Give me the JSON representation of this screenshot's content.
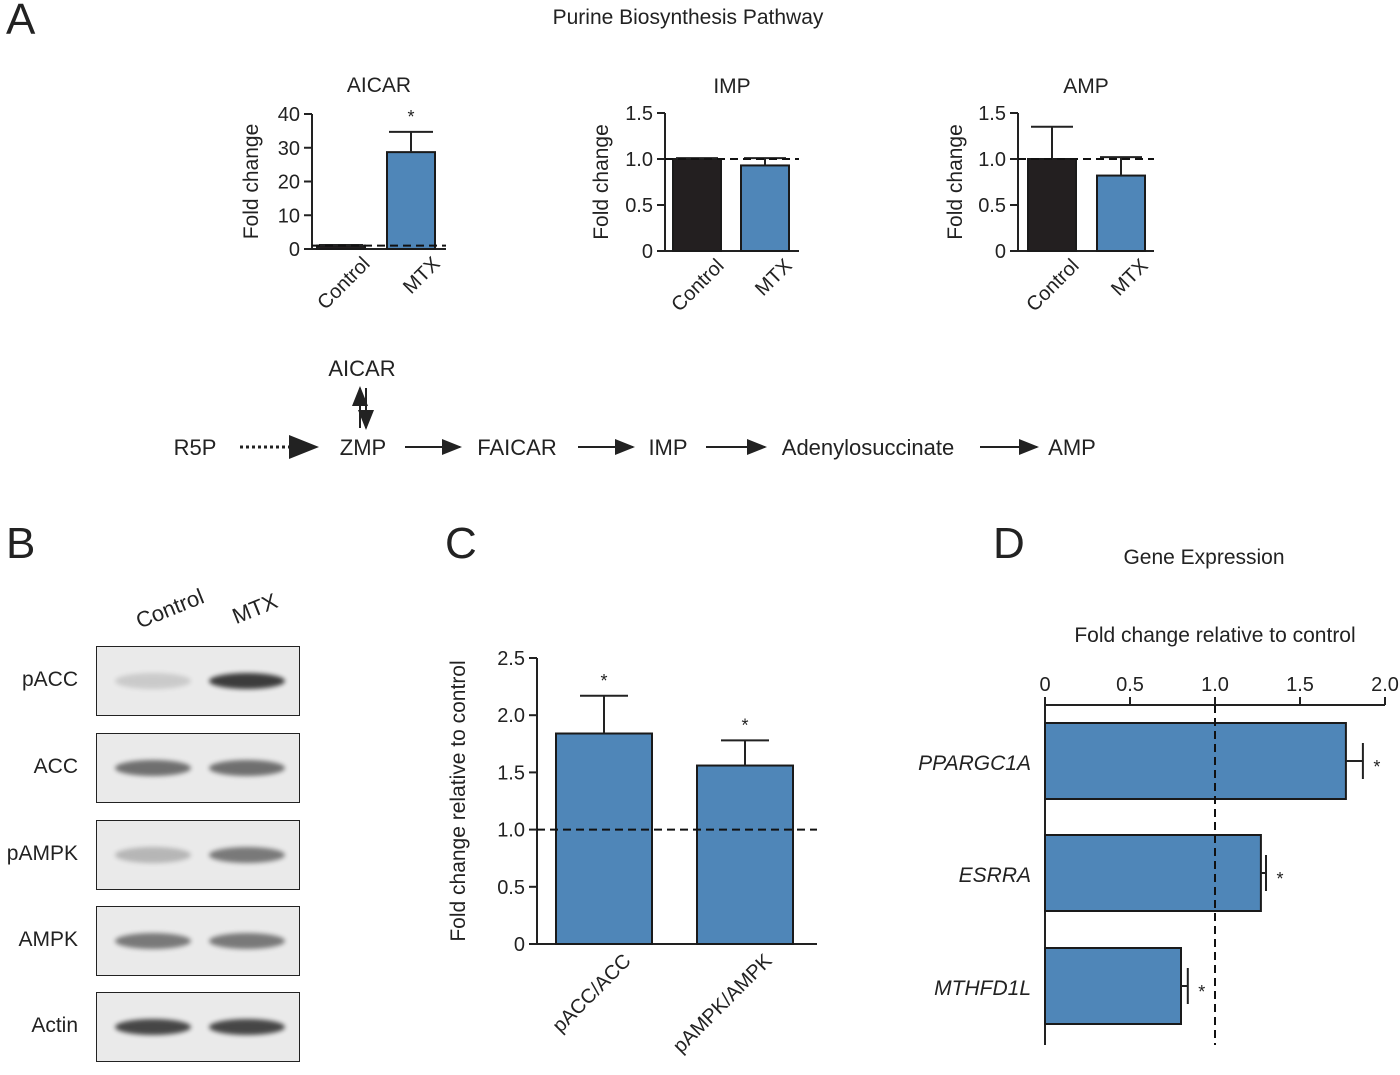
{
  "colors": {
    "control": "#231f20",
    "treatment": "#4f86b8",
    "axis": "#222222",
    "blot_bg": "#eaeaea",
    "band": "#1e1e1e"
  },
  "panel_labels": {
    "a": "A",
    "b": "B",
    "c": "C",
    "d": "D"
  },
  "panel_a": {
    "title": "Purine Biosynthesis Pathway",
    "pathway": {
      "nodes": [
        "R5P",
        "ZMP",
        "FAICAR",
        "IMP",
        "Adenylosuccinate",
        "AMP"
      ],
      "side_node": "AICAR",
      "edges": [
        {
          "from": "R5P",
          "to": "ZMP",
          "style": "dotted"
        },
        {
          "from": "ZMP",
          "to": "FAICAR",
          "style": "solid"
        },
        {
          "from": "FAICAR",
          "to": "IMP",
          "style": "solid"
        },
        {
          "from": "IMP",
          "to": "Adenylosuccinate",
          "style": "solid"
        },
        {
          "from": "Adenylosuccinate",
          "to": "AMP",
          "style": "solid"
        },
        {
          "from": "AICAR",
          "to": "ZMP",
          "style": "reversible"
        }
      ]
    }
  },
  "panel_b": {
    "lanes": [
      "Control",
      "MTX"
    ],
    "blots": [
      {
        "label": "pACC",
        "intensity": [
          0.15,
          0.85
        ]
      },
      {
        "label": "ACC",
        "intensity": [
          0.6,
          0.6
        ]
      },
      {
        "label": "pAMPK",
        "intensity": [
          0.25,
          0.55
        ]
      },
      {
        "label": "AMPK",
        "intensity": [
          0.55,
          0.55
        ]
      },
      {
        "label": "Actin",
        "intensity": [
          0.8,
          0.8
        ]
      }
    ]
  },
  "panel_d": {
    "title": "Gene Expression"
  },
  "chart_data": [
    {
      "type": "bar",
      "title": "AICAR",
      "xlabel": "",
      "ylabel": "Fold change",
      "categories": [
        "Control",
        "MTX"
      ],
      "values": [
        1.0,
        28.7
      ],
      "errors": [
        0.2,
        6.0
      ],
      "significance": [
        "",
        "*"
      ],
      "ylim": [
        0,
        40
      ],
      "yticks": [
        "0",
        "10",
        "20",
        "30",
        "40"
      ],
      "reference_line": 1.0
    },
    {
      "type": "bar",
      "title": "IMP",
      "xlabel": "",
      "ylabel": "Fold change",
      "categories": [
        "Control",
        "MTX"
      ],
      "values": [
        1.0,
        0.93
      ],
      "errors": [
        0.01,
        0.08
      ],
      "significance": [
        "",
        ""
      ],
      "ylim": [
        0,
        1.5
      ],
      "yticks": [
        "0",
        "0.5",
        "1.0",
        "1.5"
      ],
      "reference_line": 1.0
    },
    {
      "type": "bar",
      "title": "AMP",
      "xlabel": "",
      "ylabel": "Fold change",
      "categories": [
        "Control",
        "MTX"
      ],
      "values": [
        1.0,
        0.82
      ],
      "errors": [
        0.35,
        0.2
      ],
      "significance": [
        "",
        ""
      ],
      "ylim": [
        0,
        1.5
      ],
      "yticks": [
        "0",
        "0.5",
        "1.0",
        "1.5"
      ],
      "reference_line": 1.0
    },
    {
      "type": "bar",
      "title": "",
      "xlabel": "",
      "ylabel": "Fold change relative to control",
      "categories": [
        "pACC/ACC",
        "pAMPK/AMPK"
      ],
      "values": [
        1.84,
        1.56
      ],
      "errors": [
        0.33,
        0.22
      ],
      "significance": [
        "*",
        "*"
      ],
      "ylim": [
        0,
        2.5
      ],
      "yticks": [
        "0",
        "0.5",
        "1.0",
        "1.5",
        "2.0",
        "2.5"
      ],
      "reference_line": 1.0
    },
    {
      "type": "bar",
      "orientation": "horizontal",
      "title": "",
      "xlabel": "Fold change relative to control",
      "ylabel": "",
      "categories": [
        "PPARGC1A",
        "ESRRA",
        "MTHFD1L"
      ],
      "values": [
        1.77,
        1.27,
        0.8
      ],
      "errors": [
        0.1,
        0.03,
        0.04
      ],
      "significance": [
        "*",
        "*",
        "*"
      ],
      "xlim": [
        0,
        2.0
      ],
      "xticks": [
        "0",
        "0.5",
        "1.0",
        "1.5",
        "2.0"
      ],
      "reference_line": 1.0
    }
  ]
}
